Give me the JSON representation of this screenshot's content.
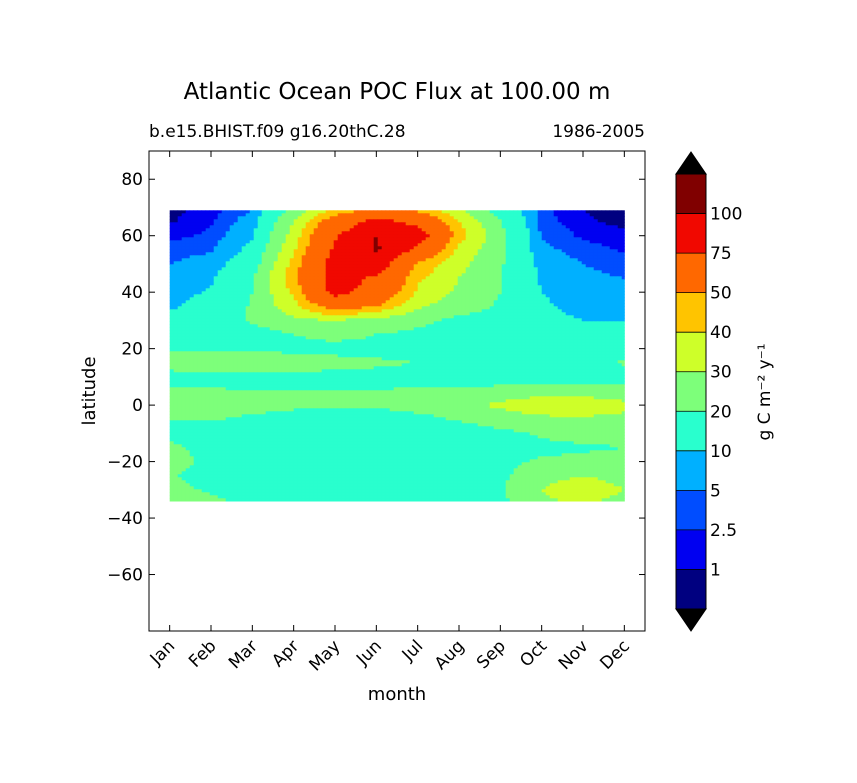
{
  "chart_data": {
    "type": "heatmap",
    "subtype": "filled-contour",
    "title": "Atlantic Ocean POC Flux at 100.00 m",
    "subtitle_left": "b.e15.BHIST.f09 g16.20thC.28",
    "subtitle_right": "1986-2005",
    "xlabel": "month",
    "ylabel": "latitude",
    "x_ticks": [
      "Jan",
      "Feb",
      "Mar",
      "Apr",
      "May",
      "Jun",
      "Jul",
      "Aug",
      "Sep",
      "Oct",
      "Nov",
      "Dec"
    ],
    "ylim": [
      -80,
      90
    ],
    "y_ticks": [
      80,
      60,
      40,
      20,
      0,
      -20,
      -40,
      -60
    ],
    "data_lat_range": [
      -34,
      69
    ],
    "colorbar": {
      "label": "g C m⁻² y⁻¹",
      "extend": "both",
      "levels": [
        1,
        2.5,
        5,
        10,
        20,
        30,
        40,
        50,
        75,
        100
      ],
      "tick_labels": [
        "1",
        "2.5",
        "5",
        "10",
        "20",
        "30",
        "40",
        "50",
        "75",
        "100"
      ],
      "colors": [
        "#000080",
        "#0000f1",
        "#004dff",
        "#00b0ff",
        "#29ffce",
        "#7dff7a",
        "#ceff29",
        "#ffc400",
        "#ff6800",
        "#f10800",
        "#800000"
      ],
      "under_color": "#000000",
      "over_color": "#000000"
    },
    "z_lat": [
      -34,
      -30,
      -25,
      -20,
      -15,
      -10,
      -5,
      0,
      5,
      10,
      15,
      20,
      25,
      30,
      35,
      40,
      45,
      50,
      55,
      60,
      65,
      69
    ],
    "z_values": [
      [
        22,
        22,
        18,
        12,
        12,
        12,
        12,
        15,
        18,
        28,
        32,
        26
      ],
      [
        22,
        19,
        12,
        11,
        11,
        12,
        13,
        15,
        19,
        30,
        38,
        30
      ],
      [
        21,
        16,
        11,
        11,
        11,
        12,
        13,
        15,
        18,
        26,
        30,
        25
      ],
      [
        23,
        18,
        12,
        11,
        11,
        12,
        13,
        15,
        18,
        21,
        22,
        22
      ],
      [
        22,
        17,
        13,
        12,
        12,
        12,
        13,
        15,
        17,
        18,
        19,
        20
      ],
      [
        18,
        14,
        13,
        12,
        12,
        12,
        13,
        15,
        18,
        21,
        23,
        22
      ],
      [
        20,
        21,
        18,
        16,
        14,
        14,
        17,
        21,
        24,
        27,
        28,
        27
      ],
      [
        26,
        25,
        24,
        22,
        22,
        22,
        24,
        27,
        32,
        39,
        38,
        33
      ],
      [
        22,
        21,
        20,
        20,
        20,
        20,
        21,
        22,
        23,
        24,
        24,
        23
      ],
      [
        16,
        16,
        17,
        18,
        18,
        18,
        17,
        16,
        15,
        15,
        15,
        15
      ],
      [
        25,
        30,
        29,
        24,
        22,
        21,
        20,
        18,
        17,
        16,
        17,
        21
      ],
      [
        18,
        17,
        17,
        18,
        18,
        18,
        17,
        16,
        16,
        16,
        16,
        17
      ],
      [
        15,
        16,
        16,
        20,
        22,
        20,
        18,
        17,
        16,
        16,
        16,
        15
      ],
      [
        13,
        15,
        21,
        28,
        30,
        26,
        22,
        18,
        16,
        12,
        10,
        9
      ],
      [
        9,
        13,
        21,
        37,
        58,
        50,
        32,
        24,
        19,
        11,
        8,
        7
      ],
      [
        7,
        11,
        20,
        42,
        82,
        65,
        38,
        28,
        20,
        10,
        7,
        6
      ],
      [
        6,
        9,
        19,
        46,
        85,
        72,
        42,
        30,
        20,
        9,
        6,
        5
      ],
      [
        5,
        7,
        15,
        43,
        86,
        88,
        48,
        33,
        21,
        8,
        5,
        3.5
      ],
      [
        3.5,
        4.5,
        12,
        38,
        78,
        103,
        68,
        38,
        22,
        6,
        3.5,
        2.2
      ],
      [
        1.8,
        3,
        9,
        34,
        72,
        100,
        88,
        44,
        23,
        4.5,
        2,
        1.2
      ],
      [
        0.8,
        2.2,
        7,
        30,
        60,
        82,
        68,
        40,
        20,
        3.5,
        1.2,
        0.7
      ],
      [
        0.6,
        1.6,
        5,
        22,
        42,
        54,
        48,
        32,
        16,
        3,
        1,
        0.6
      ]
    ]
  }
}
